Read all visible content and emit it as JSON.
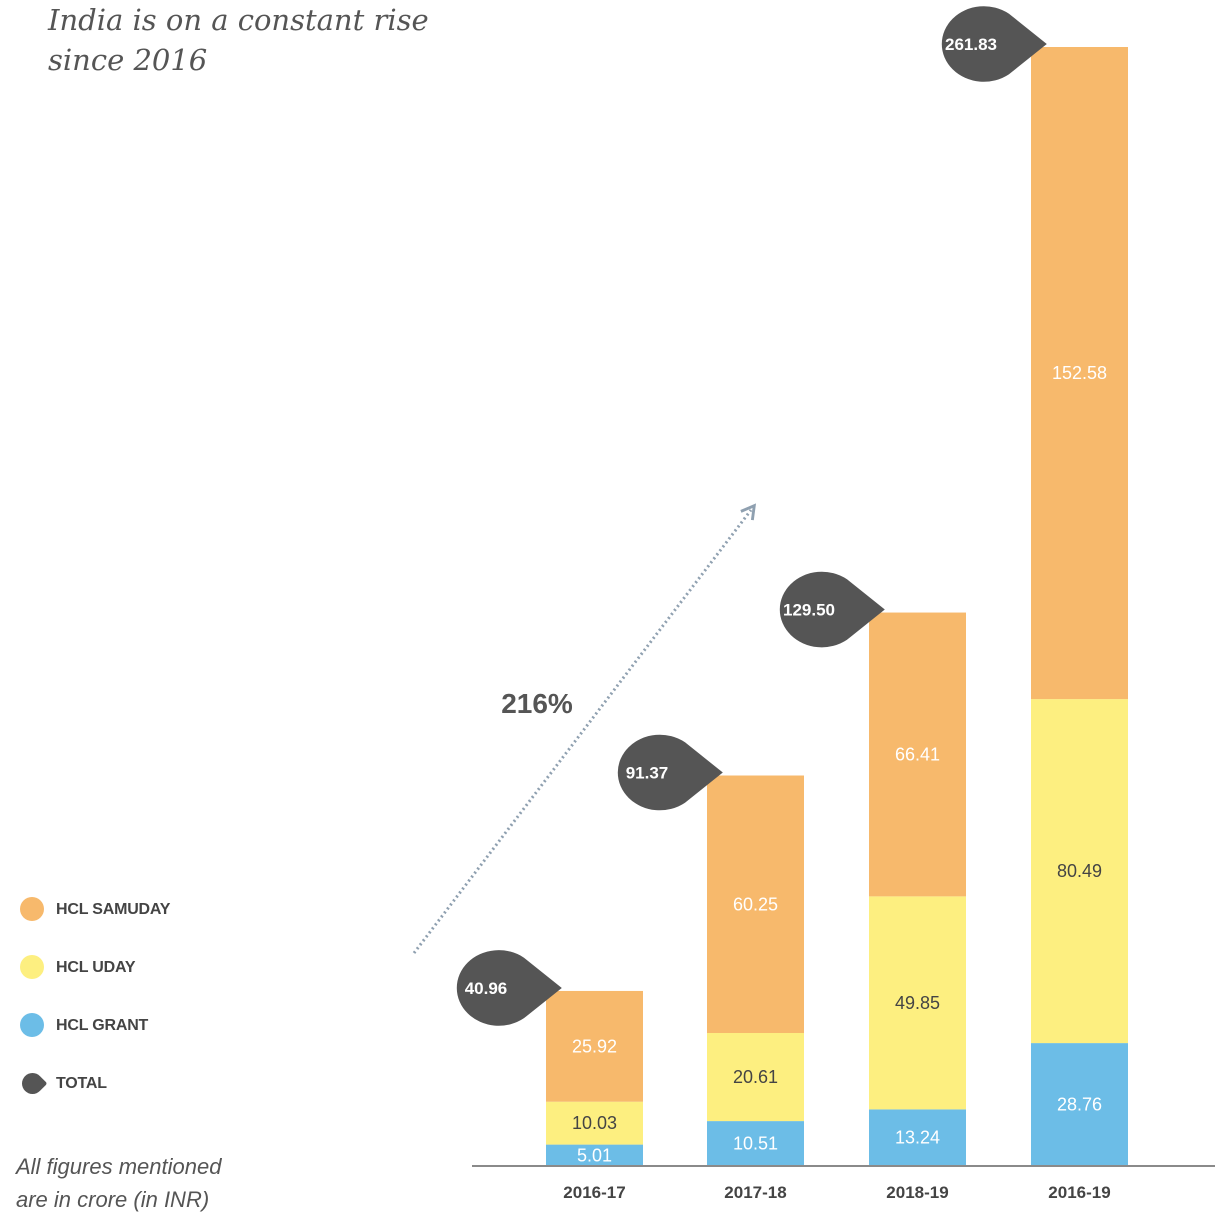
{
  "title": {
    "line1": "India is on a constant rise",
    "line2": "since 2016"
  },
  "growth_label": "216%",
  "note": {
    "line1": "All figures mentioned",
    "line2": "are in crore (in INR)"
  },
  "colors": {
    "samuday": "#F7B96C",
    "uday": "#FDEF80",
    "grant": "#6CBDE7",
    "total": "#555555",
    "axis": "#8a8a8a",
    "arrow": "#8fa0b0"
  },
  "legend": [
    {
      "label": "HCL SAMUDAY",
      "color": "#F7B96C",
      "shape": "circle"
    },
    {
      "label": "HCL UDAY",
      "color": "#FDEF80",
      "shape": "circle"
    },
    {
      "label": "HCL GRANT",
      "color": "#6CBDE7",
      "shape": "circle"
    },
    {
      "label": "TOTAL",
      "color": "#555555",
      "shape": "drop"
    }
  ],
  "chart_data": {
    "type": "bar",
    "stacked": true,
    "categories": [
      "2016-17",
      "2017-18",
      "2018-19",
      "2016-19"
    ],
    "series": [
      {
        "name": "HCL GRANT",
        "values": [
          5.01,
          10.51,
          13.24,
          28.76
        ],
        "labels": [
          "5.01",
          "10.51",
          "13.24",
          "28.76"
        ],
        "color": "#6CBDE7",
        "label_color": "#ffffff"
      },
      {
        "name": "HCL UDAY",
        "values": [
          10.03,
          20.61,
          49.85,
          80.49
        ],
        "labels": [
          "10.03",
          "20.61",
          "49.85",
          "80.49"
        ],
        "color": "#FDEF80",
        "label_color": "#444444"
      },
      {
        "name": "HCL SAMUDAY",
        "values": [
          25.92,
          60.25,
          66.41,
          152.58
        ],
        "labels": [
          "25.92",
          "60.25",
          "66.41",
          "152.58"
        ],
        "color": "#F7B96C",
        "label_color": "#ffffff"
      }
    ],
    "totals": [
      40.96,
      91.37,
      129.5,
      261.83
    ],
    "total_labels": [
      "40.96",
      "91.37",
      "129.50",
      "261.83"
    ],
    "ylim": [
      0,
      261.83
    ],
    "grid": false
  }
}
